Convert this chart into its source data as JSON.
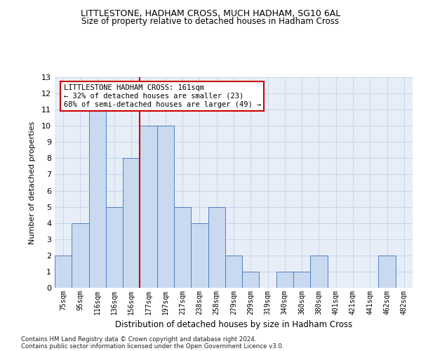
{
  "title": "LITTLESTONE, HADHAM CROSS, MUCH HADHAM, SG10 6AL",
  "subtitle": "Size of property relative to detached houses in Hadham Cross",
  "xlabel": "Distribution of detached houses by size in Hadham Cross",
  "ylabel": "Number of detached properties",
  "footnote1": "Contains HM Land Registry data © Crown copyright and database right 2024.",
  "footnote2": "Contains public sector information licensed under the Open Government Licence v3.0.",
  "annotation_title": "LITTLESTONE HADHAM CROSS: 161sqm",
  "annotation_line2": "← 32% of detached houses are smaller (23)",
  "annotation_line3": "68% of semi-detached houses are larger (49) →",
  "bar_labels": [
    "75sqm",
    "95sqm",
    "116sqm",
    "136sqm",
    "156sqm",
    "177sqm",
    "197sqm",
    "217sqm",
    "238sqm",
    "258sqm",
    "279sqm",
    "299sqm",
    "319sqm",
    "340sqm",
    "360sqm",
    "380sqm",
    "401sqm",
    "421sqm",
    "441sqm",
    "462sqm",
    "482sqm"
  ],
  "bar_values": [
    2,
    4,
    11,
    5,
    8,
    10,
    10,
    5,
    4,
    5,
    2,
    1,
    0,
    1,
    1,
    2,
    0,
    0,
    0,
    2,
    0
  ],
  "bar_color": "#c9d9f0",
  "bar_edge_color": "#5080c0",
  "red_line_x": 4.5,
  "ylim": [
    0,
    13
  ],
  "yticks": [
    0,
    1,
    2,
    3,
    4,
    5,
    6,
    7,
    8,
    9,
    10,
    11,
    12,
    13
  ],
  "red_line_color": "#cc0000",
  "annotation_box_color": "#cc0000",
  "grid_color": "#c8d4e8",
  "bg_color": "#e8eef8"
}
